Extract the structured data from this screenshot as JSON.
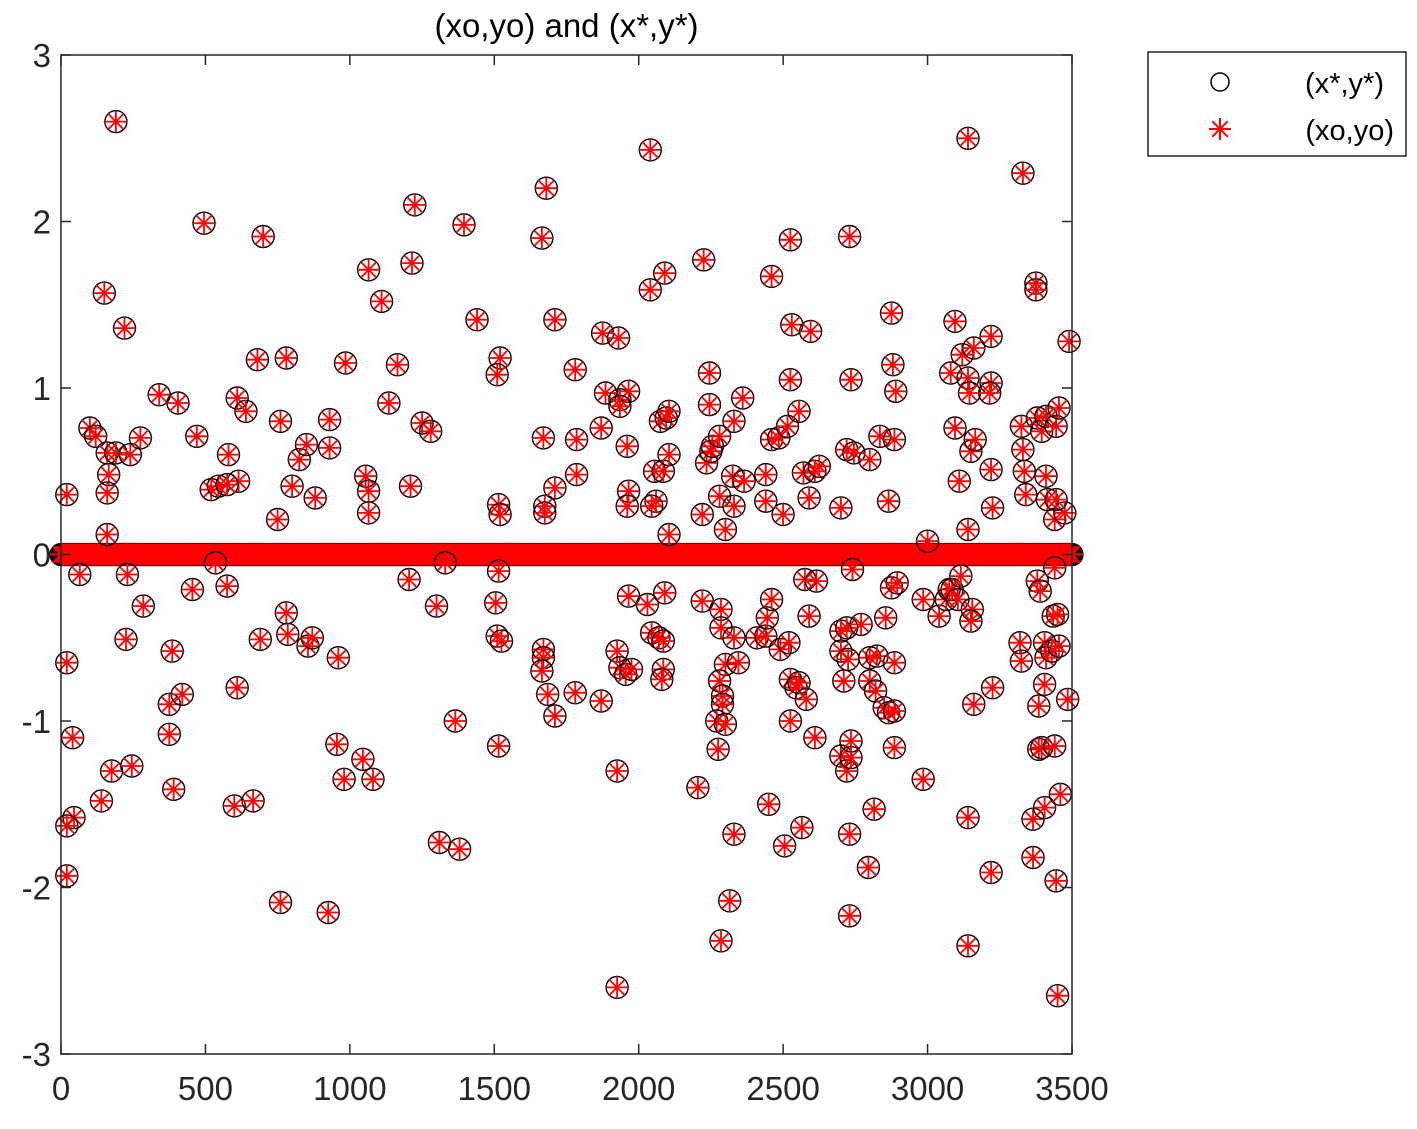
{
  "chart_data": {
    "type": "scatter",
    "title": "(xo,yo) and (x*,y*)",
    "xlabel": "",
    "ylabel": "",
    "xlim": [
      0,
      3500
    ],
    "ylim": [
      -3,
      3
    ],
    "xticks": [
      0,
      500,
      1000,
      1500,
      2000,
      2500,
      3000,
      3500
    ],
    "yticks": [
      -3,
      -2,
      -1,
      0,
      1,
      2,
      3
    ],
    "xtick_labels": [
      "0",
      "500",
      "1000",
      "1500",
      "2000",
      "2500",
      "3000",
      "3500"
    ],
    "ytick_labels": [
      "-3",
      "-2",
      "-1",
      "0",
      "1",
      "2",
      "3"
    ],
    "grid": false,
    "legend_position": "outside-top-right",
    "zero_baseline": {
      "from": 0,
      "to": 3500,
      "value": 0,
      "note": "dense row of zero-valued points"
    },
    "series": [
      {
        "name": "(x*,y*)",
        "marker": "circle",
        "color": "#000000"
      },
      {
        "name": "(xo,yo)",
        "marker": "asterisk",
        "color": "#ff0000"
      }
    ],
    "points": [
      [
        190,
        2.6
      ],
      [
        495,
        1.99
      ],
      [
        700,
        1.91
      ],
      [
        1225,
        2.1
      ],
      [
        1395,
        1.98
      ],
      [
        1215,
        1.75
      ],
      [
        1065,
        1.71
      ],
      [
        1110,
        1.52
      ],
      [
        150,
        1.57
      ],
      [
        220,
        1.36
      ],
      [
        2040,
        2.43
      ],
      [
        1680,
        2.2
      ],
      [
        1665,
        1.9
      ],
      [
        2225,
        1.77
      ],
      [
        2090,
        1.69
      ],
      [
        2040,
        1.59
      ],
      [
        1710,
        1.41
      ],
      [
        1440,
        1.41
      ],
      [
        1875,
        1.33
      ],
      [
        1930,
        1.3
      ],
      [
        3140,
        2.5
      ],
      [
        3330,
        2.29
      ],
      [
        2730,
        1.91
      ],
      [
        2525,
        1.89
      ],
      [
        2460,
        1.67
      ],
      [
        3375,
        1.63
      ],
      [
        3375,
        1.59
      ],
      [
        2875,
        1.45
      ],
      [
        2530,
        1.38
      ],
      [
        2595,
        1.34
      ],
      [
        3095,
        1.4
      ],
      [
        3220,
        1.31
      ],
      [
        3490,
        1.28
      ],
      [
        1520,
        1.18
      ],
      [
        1510,
        1.08
      ],
      [
        1165,
        1.14
      ],
      [
        985,
        1.15
      ],
      [
        680,
        1.17
      ],
      [
        780,
        1.18
      ],
      [
        1780,
        1.11
      ],
      [
        2245,
        1.09
      ],
      [
        2880,
        1.14
      ],
      [
        2525,
        1.05
      ],
      [
        2735,
        1.05
      ],
      [
        3120,
        1.2
      ],
      [
        3160,
        1.24
      ],
      [
        3080,
        1.09
      ],
      [
        3140,
        1.06
      ],
      [
        3145,
        0.97
      ],
      [
        3220,
        1.03
      ],
      [
        3215,
        0.97
      ],
      [
        2890,
        0.98
      ],
      [
        100,
        0.76
      ],
      [
        120,
        0.71
      ],
      [
        160,
        0.61
      ],
      [
        190,
        0.61
      ],
      [
        165,
        0.48
      ],
      [
        160,
        0.37
      ],
      [
        240,
        0.6
      ],
      [
        275,
        0.7
      ],
      [
        340,
        0.96
      ],
      [
        405,
        0.91
      ],
      [
        470,
        0.71
      ],
      [
        520,
        0.39
      ],
      [
        545,
        0.41
      ],
      [
        580,
        0.6
      ],
      [
        610,
        0.94
      ],
      [
        640,
        0.86
      ],
      [
        615,
        0.44
      ],
      [
        575,
        0.42
      ],
      [
        760,
        0.8
      ],
      [
        800,
        0.41
      ],
      [
        825,
        0.57
      ],
      [
        850,
        0.66
      ],
      [
        880,
        0.34
      ],
      [
        930,
        0.81
      ],
      [
        930,
        0.64
      ],
      [
        1055,
        0.47
      ],
      [
        1065,
        0.38
      ],
      [
        1065,
        0.25
      ],
      [
        1135,
        0.91
      ],
      [
        1210,
        0.41
      ],
      [
        1250,
        0.79
      ],
      [
        1280,
        0.74
      ],
      [
        750,
        0.21
      ],
      [
        160,
        0.12
      ],
      [
        20,
        0.36
      ],
      [
        1515,
        0.3
      ],
      [
        1520,
        0.24
      ],
      [
        1670,
        0.7
      ],
      [
        1675,
        0.29
      ],
      [
        1675,
        0.25
      ],
      [
        1710,
        0.4
      ],
      [
        1785,
        0.69
      ],
      [
        1785,
        0.48
      ],
      [
        1870,
        0.76
      ],
      [
        1885,
        0.97
      ],
      [
        1935,
        0.93
      ],
      [
        1965,
        0.98
      ],
      [
        1935,
        0.89
      ],
      [
        1960,
        0.65
      ],
      [
        2055,
        0.5
      ],
      [
        2060,
        0.32
      ],
      [
        2045,
        0.29
      ],
      [
        1965,
        0.38
      ],
      [
        1960,
        0.29
      ],
      [
        2075,
        0.8
      ],
      [
        2095,
        0.82
      ],
      [
        2105,
        0.86
      ],
      [
        2085,
        0.5
      ],
      [
        2105,
        0.6
      ],
      [
        2105,
        0.12
      ],
      [
        2220,
        0.24
      ],
      [
        2235,
        0.55
      ],
      [
        2245,
        0.9
      ],
      [
        2250,
        0.62
      ],
      [
        2255,
        0.65
      ],
      [
        2280,
        0.71
      ],
      [
        2330,
        0.8
      ],
      [
        2280,
        0.35
      ],
      [
        2300,
        0.15
      ],
      [
        2325,
        0.47
      ],
      [
        2330,
        0.29
      ],
      [
        2360,
        0.94
      ],
      [
        2365,
        0.44
      ],
      [
        2440,
        0.48
      ],
      [
        2440,
        0.32
      ],
      [
        2460,
        0.69
      ],
      [
        2485,
        0.7
      ],
      [
        2500,
        0.24
      ],
      [
        2515,
        0.77
      ],
      [
        2555,
        0.86
      ],
      [
        2570,
        0.49
      ],
      [
        2590,
        0.34
      ],
      [
        2610,
        0.5
      ],
      [
        2625,
        0.53
      ],
      [
        2700,
        0.28
      ],
      [
        2720,
        0.63
      ],
      [
        2745,
        0.61
      ],
      [
        2800,
        0.57
      ],
      [
        2835,
        0.71
      ],
      [
        2865,
        0.32
      ],
      [
        2885,
        0.69
      ],
      [
        3000,
        0.08
      ],
      [
        3095,
        0.76
      ],
      [
        3110,
        0.44
      ],
      [
        3150,
        0.62
      ],
      [
        3165,
        0.69
      ],
      [
        3220,
        0.51
      ],
      [
        3225,
        0.28
      ],
      [
        3325,
        0.77
      ],
      [
        3330,
        0.63
      ],
      [
        3335,
        0.5
      ],
      [
        3340,
        0.36
      ],
      [
        3380,
        0.82
      ],
      [
        3395,
        0.74
      ],
      [
        3410,
        0.83
      ],
      [
        3410,
        0.47
      ],
      [
        3415,
        0.33
      ],
      [
        3445,
        0.77
      ],
      [
        3455,
        0.88
      ],
      [
        3440,
        0.21
      ],
      [
        3475,
        0.25
      ],
      [
        3445,
        0.33
      ],
      [
        3140,
        0.15
      ],
      [
        20,
        -0.65
      ],
      [
        65,
        -0.12
      ],
      [
        230,
        -0.12
      ],
      [
        225,
        -0.51
      ],
      [
        285,
        -0.31
      ],
      [
        385,
        -0.58
      ],
      [
        455,
        -0.21
      ],
      [
        535,
        -0.05
      ],
      [
        575,
        -0.19
      ],
      [
        610,
        -0.8
      ],
      [
        690,
        -0.51
      ],
      [
        780,
        -0.35
      ],
      [
        785,
        -0.48
      ],
      [
        855,
        -0.55
      ],
      [
        870,
        -0.5
      ],
      [
        960,
        -0.62
      ],
      [
        1205,
        -0.15
      ],
      [
        1300,
        -0.31
      ],
      [
        1330,
        -0.05
      ],
      [
        1505,
        -0.29
      ],
      [
        1515,
        -0.1
      ],
      [
        1510,
        -0.49
      ],
      [
        1525,
        -0.52
      ],
      [
        1670,
        -0.57
      ],
      [
        1670,
        -0.62
      ],
      [
        1665,
        -0.7
      ],
      [
        1685,
        -0.84
      ],
      [
        1710,
        -0.97
      ],
      [
        1780,
        -0.83
      ],
      [
        1870,
        -0.88
      ],
      [
        1925,
        -0.58
      ],
      [
        1935,
        -0.68
      ],
      [
        1955,
        -0.72
      ],
      [
        1965,
        -0.25
      ],
      [
        1975,
        -0.69
      ],
      [
        2030,
        -0.3
      ],
      [
        2045,
        -0.47
      ],
      [
        2070,
        -0.5
      ],
      [
        2085,
        -0.52
      ],
      [
        2090,
        -0.23
      ],
      [
        2085,
        -0.69
      ],
      [
        2080,
        -0.75
      ],
      [
        2220,
        -0.28
      ],
      [
        2285,
        -0.33
      ],
      [
        2285,
        -0.44
      ],
      [
        2330,
        -0.5
      ],
      [
        2300,
        -0.66
      ],
      [
        2280,
        -0.76
      ],
      [
        2290,
        -0.85
      ],
      [
        2290,
        -0.9
      ],
      [
        2270,
        -1.0
      ],
      [
        2300,
        -1.02
      ],
      [
        2275,
        -1.17
      ],
      [
        2345,
        -0.65
      ],
      [
        2410,
        -0.5
      ],
      [
        2440,
        -0.49
      ],
      [
        2445,
        -0.38
      ],
      [
        2460,
        -0.27
      ],
      [
        2490,
        -0.57
      ],
      [
        2520,
        -0.53
      ],
      [
        2525,
        -0.75
      ],
      [
        2545,
        -0.8
      ],
      [
        2555,
        -0.77
      ],
      [
        2580,
        -0.87
      ],
      [
        2525,
        -1.0
      ],
      [
        2610,
        -1.1
      ],
      [
        2590,
        -0.37
      ],
      [
        2575,
        -0.15
      ],
      [
        2615,
        -0.16
      ],
      [
        2700,
        -0.46
      ],
      [
        2720,
        -0.44
      ],
      [
        2700,
        -0.58
      ],
      [
        2725,
        -0.63
      ],
      [
        2770,
        -0.42
      ],
      [
        2740,
        -0.09
      ],
      [
        2710,
        -0.76
      ],
      [
        2800,
        -0.62
      ],
      [
        2825,
        -0.61
      ],
      [
        2800,
        -0.76
      ],
      [
        2820,
        -0.82
      ],
      [
        2850,
        -0.92
      ],
      [
        2865,
        -0.95
      ],
      [
        2885,
        -0.94
      ],
      [
        2875,
        -0.2
      ],
      [
        2895,
        -0.17
      ],
      [
        2855,
        -0.38
      ],
      [
        2885,
        -0.65
      ],
      [
        2985,
        -0.27
      ],
      [
        3040,
        -0.37
      ],
      [
        3065,
        -0.27
      ],
      [
        3075,
        -0.21
      ],
      [
        3085,
        -0.21
      ],
      [
        3105,
        -0.27
      ],
      [
        3115,
        -0.13
      ],
      [
        3155,
        -0.33
      ],
      [
        3150,
        -0.4
      ],
      [
        3160,
        -0.9
      ],
      [
        3225,
        -0.8
      ],
      [
        3320,
        -0.53
      ],
      [
        3325,
        -0.64
      ],
      [
        3380,
        -0.16
      ],
      [
        3390,
        -0.22
      ],
      [
        3385,
        -0.91
      ],
      [
        3405,
        -0.53
      ],
      [
        3410,
        -0.62
      ],
      [
        3405,
        -0.78
      ],
      [
        3430,
        -0.58
      ],
      [
        3435,
        -0.37
      ],
      [
        3450,
        -0.36
      ],
      [
        3455,
        -0.55
      ],
      [
        3440,
        -0.08
      ],
      [
        3485,
        -0.87
      ],
      [
        40,
        -1.1
      ],
      [
        45,
        -1.58
      ],
      [
        20,
        -1.63
      ],
      [
        20,
        -1.93
      ],
      [
        140,
        -1.48
      ],
      [
        175,
        -1.3
      ],
      [
        245,
        -1.27
      ],
      [
        375,
        -0.9
      ],
      [
        420,
        -0.84
      ],
      [
        375,
        -1.08
      ],
      [
        390,
        -1.41
      ],
      [
        600,
        -1.51
      ],
      [
        665,
        -1.48
      ],
      [
        760,
        -2.09
      ],
      [
        925,
        -2.15
      ],
      [
        955,
        -1.14
      ],
      [
        980,
        -1.35
      ],
      [
        1045,
        -1.23
      ],
      [
        1080,
        -1.35
      ],
      [
        1310,
        -1.73
      ],
      [
        1365,
        -1.0
      ],
      [
        1380,
        -1.77
      ],
      [
        1515,
        -1.15
      ],
      [
        1925,
        -1.3
      ],
      [
        1925,
        -2.6
      ],
      [
        2205,
        -1.4
      ],
      [
        2285,
        -2.32
      ],
      [
        2315,
        -2.08
      ],
      [
        2330,
        -1.68
      ],
      [
        2450,
        -1.5
      ],
      [
        2505,
        -1.75
      ],
      [
        2565,
        -1.64
      ],
      [
        2700,
        -1.21
      ],
      [
        2720,
        -1.3
      ],
      [
        2735,
        -1.12
      ],
      [
        2735,
        -1.22
      ],
      [
        2730,
        -1.68
      ],
      [
        2730,
        -2.17
      ],
      [
        2795,
        -1.88
      ],
      [
        2815,
        -1.53
      ],
      [
        2885,
        -1.16
      ],
      [
        2985,
        -1.35
      ],
      [
        3140,
        -1.58
      ],
      [
        3140,
        -2.35
      ],
      [
        3220,
        -1.91
      ],
      [
        3365,
        -1.59
      ],
      [
        3365,
        -1.82
      ],
      [
        3385,
        -1.17
      ],
      [
        3395,
        -1.16
      ],
      [
        3405,
        -1.52
      ],
      [
        3440,
        -1.15
      ],
      [
        3445,
        -1.96
      ],
      [
        3450,
        -2.65
      ],
      [
        3460,
        -1.44
      ]
    ]
  }
}
